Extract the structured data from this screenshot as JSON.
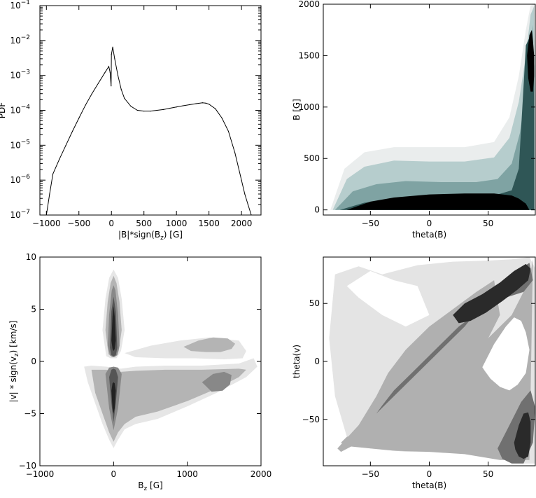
{
  "chart_data": [
    {
      "type": "line",
      "title": "",
      "xlabel": "|B|*sign(B",
      "xlabel_sub": "z",
      "xlabel_tail": ") [G]",
      "ylabel": "PDF",
      "xlim": [
        -1100,
        2300
      ],
      "ylim": [
        1e-07,
        0.1
      ],
      "y_scale": "log",
      "x_ticks": [
        -1000,
        -500,
        0,
        500,
        1000,
        1500,
        2000
      ],
      "x_tick_labels": [
        "−1000",
        "−500",
        "0",
        "500",
        "1000",
        "1500",
        "2000"
      ],
      "y_tick_exponents": [
        -7,
        -6,
        -5,
        -4,
        -3,
        -2,
        -1
      ],
      "y_tick_base": "10",
      "series": [
        {
          "x": [
            -1000,
            -950,
            -900,
            -800,
            -700,
            -600,
            -500,
            -400,
            -300,
            -200,
            -100,
            -40,
            -20,
            -5,
            0,
            20,
            50,
            100,
            150,
            200,
            300,
            400,
            500,
            600,
            700,
            800,
            900,
            1000,
            1100,
            1200,
            1300,
            1400,
            1450,
            1500,
            1600,
            1700,
            1800,
            1900,
            2000,
            2050,
            2100,
            2150
          ],
          "y": [
            1e-07,
            4e-07,
            1.5e-06,
            4e-06,
            1e-05,
            2.5e-05,
            6e-05,
            0.00014,
            0.0003,
            0.0006,
            0.0012,
            0.0018,
            0.0012,
            0.0005,
            0.004,
            0.0065,
            0.003,
            0.001,
            0.0004,
            0.00022,
            0.00013,
            0.0001,
            9.5e-05,
            9.5e-05,
            0.0001,
            0.000105,
            0.000115,
            0.000125,
            0.000135,
            0.000145,
            0.000155,
            0.000165,
            0.00016,
            0.00015,
            0.00011,
            6e-05,
            2.5e-05,
            6e-06,
            1e-06,
            4e-07,
            2e-07,
            1e-07
          ]
        }
      ]
    },
    {
      "type": "heatmap",
      "title": "",
      "xlabel": "theta(B)",
      "ylabel": "B [G]",
      "xlim": [
        -90,
        90
      ],
      "ylim": [
        -50,
        2000
      ],
      "x_ticks": [
        -50,
        0,
        50
      ],
      "x_tick_labels": [
        "−50",
        "0",
        "50"
      ],
      "y_ticks": [
        0,
        500,
        1000,
        1500,
        2000
      ],
      "y_tick_labels": [
        "0",
        "500",
        "1000",
        "1500",
        "2000"
      ],
      "levels": [
        {
          "color": "#eaeded",
          "x": [
            -84,
            -72,
            -55,
            -30,
            0,
            30,
            55,
            68,
            76,
            82,
            86,
            89,
            90,
            90,
            -84
          ],
          "y": [
            0,
            400,
            560,
            610,
            610,
            610,
            660,
            900,
            1300,
            1750,
            1990,
            2000,
            2000,
            0,
            0
          ]
        },
        {
          "color": "#b6cdcd",
          "x": [
            -82,
            -70,
            -55,
            -30,
            0,
            30,
            55,
            68,
            76,
            82,
            86,
            89,
            90,
            -82
          ],
          "y": [
            0,
            300,
            420,
            480,
            470,
            470,
            510,
            700,
            1050,
            1500,
            1900,
            1980,
            0,
            0
          ]
        },
        {
          "color": "#7fa3a3",
          "x": [
            -80,
            -65,
            -45,
            -20,
            10,
            40,
            58,
            70,
            77,
            82,
            86,
            88,
            89,
            -80
          ],
          "y": [
            0,
            180,
            250,
            280,
            270,
            270,
            300,
            450,
            750,
            1150,
            1600,
            1800,
            0,
            0
          ]
        },
        {
          "color": "#2f5656",
          "x": [
            -76,
            -55,
            -30,
            0,
            30,
            55,
            70,
            76,
            78,
            80,
            82,
            86,
            89,
            89,
            -76
          ],
          "y": [
            0,
            70,
            100,
            110,
            120,
            140,
            190,
            400,
            800,
            1200,
            1600,
            1700,
            1400,
            0,
            0
          ]
        },
        {
          "color": "#000000",
          "x": [
            -70,
            -50,
            -30,
            0,
            30,
            55,
            70,
            76,
            82,
            85,
            -70
          ],
          "y": [
            0,
            80,
            120,
            150,
            160,
            160,
            140,
            110,
            60,
            0,
            0
          ]
        },
        {
          "color": "#000000",
          "x": [
            83,
            85,
            87,
            88,
            89,
            89,
            88,
            86,
            84,
            83
          ],
          "y": [
            1500,
            1700,
            1750,
            1650,
            1500,
            1300,
            1150,
            1150,
            1280,
            1500
          ]
        }
      ]
    },
    {
      "type": "heatmap",
      "title": "",
      "xlabel": "B",
      "xlabel_sub": "z",
      "xlabel_tail": " [G]",
      "ylabel": "|v| * sign(v",
      "ylabel_sub": "z",
      "ylabel_tail": ") [km/s]",
      "xlim": [
        -1000,
        2000
      ],
      "ylim": [
        -10,
        10
      ],
      "x_ticks": [
        -1000,
        0,
        1000,
        2000
      ],
      "x_tick_labels": [
        "−1000",
        "0",
        "1000",
        "2000"
      ],
      "y_ticks": [
        -10,
        -5,
        0,
        5,
        10
      ],
      "y_tick_labels": [
        "−10",
        "−5",
        "0",
        "5",
        "10"
      ],
      "levels": [
        {
          "color": "#e6e6e6",
          "x": [
            -400,
            -350,
            -250,
            -150,
            -60,
            0,
            60,
            150,
            300,
            600,
            1000,
            1400,
            1800,
            1950,
            1900,
            1700,
            1200,
            700,
            300,
            100,
            0,
            -100,
            -300,
            -400
          ],
          "y": [
            -0.5,
            -2,
            -4,
            -6,
            -7.5,
            -8.3,
            -7.5,
            -6.5,
            -6,
            -5.5,
            -4.3,
            -3,
            -1.5,
            -0.5,
            0.3,
            -0.2,
            -0.4,
            -0.4,
            -0.5,
            -0.7,
            -0.6,
            -0.5,
            -0.4,
            -0.5
          ]
        },
        {
          "color": "#e6e6e6",
          "x": [
            -100,
            -150,
            -110,
            -60,
            0,
            60,
            110,
            150,
            100,
            40,
            -40,
            -100
          ],
          "y": [
            0.5,
            3,
            6,
            8,
            8.8,
            8,
            6,
            3,
            1,
            0.3,
            0.3,
            0.5
          ]
        },
        {
          "color": "#e6e6e6",
          "x": [
            150,
            500,
            900,
            1300,
            1700,
            1800,
            1750,
            1500,
            1100,
            700,
            300,
            150
          ],
          "y": [
            0.8,
            1.5,
            2.0,
            2.3,
            2.0,
            1.0,
            0.3,
            0.2,
            0.3,
            0.3,
            0.4,
            0.8
          ]
        },
        {
          "color": "#b4b4b4",
          "x": [
            -300,
            -250,
            -150,
            -60,
            0,
            60,
            150,
            300,
            600,
            1000,
            1400,
            1700,
            1800,
            1700,
            1200,
            700,
            300,
            100,
            0,
            -100,
            -300
          ],
          "y": [
            -0.8,
            -3,
            -5,
            -6.8,
            -7.7,
            -6.8,
            -6,
            -5.3,
            -4.8,
            -3.8,
            -2.6,
            -1.5,
            -0.8,
            -0.7,
            -0.8,
            -0.8,
            -0.9,
            -1.0,
            -0.9,
            -0.8,
            -0.8
          ]
        },
        {
          "color": "#b4b4b4",
          "x": [
            -70,
            -110,
            -80,
            -40,
            0,
            40,
            80,
            110,
            70,
            20,
            -20,
            -70
          ],
          "y": [
            0.7,
            3,
            5.7,
            7.5,
            8.2,
            7.5,
            5.7,
            3,
            1,
            0.4,
            0.4,
            0.7
          ]
        },
        {
          "color": "#b4b4b4",
          "x": [
            950,
            1150,
            1350,
            1550,
            1650,
            1600,
            1450,
            1250,
            1050,
            950
          ],
          "y": [
            1.4,
            2.0,
            2.3,
            2.2,
            1.7,
            1.2,
            0.9,
            0.9,
            1.0,
            1.4
          ]
        },
        {
          "color": "#888888",
          "x": [
            1200,
            1350,
            1500,
            1600,
            1580,
            1480,
            1330,
            1200
          ],
          "y": [
            -2.0,
            -1.2,
            -1.0,
            -1.3,
            -2.2,
            -2.8,
            -2.9,
            -2.0
          ]
        },
        {
          "color": "#888888",
          "x": [
            -110,
            -60,
            0,
            60,
            110,
            60,
            0,
            -60,
            -110
          ],
          "y": [
            -1.2,
            -4.5,
            -6.6,
            -4.5,
            -1.2,
            -0.6,
            -0.5,
            -0.6,
            -1.2
          ]
        },
        {
          "color": "#888888",
          "x": [
            -80,
            -60,
            -25,
            0,
            25,
            60,
            80,
            50,
            0,
            -50,
            -80
          ],
          "y": [
            1.5,
            4.5,
            6.8,
            7.3,
            6.8,
            4.5,
            1.5,
            0.6,
            0.4,
            0.6,
            1.5
          ]
        },
        {
          "color": "#555555",
          "x": [
            -60,
            -30,
            0,
            30,
            60,
            30,
            0,
            -30,
            -60
          ],
          "y": [
            -1.5,
            -4,
            -5.8,
            -4,
            -1.5,
            -0.8,
            -0.7,
            -0.8,
            -1.5
          ]
        },
        {
          "color": "#555555",
          "x": [
            -50,
            -30,
            0,
            30,
            50,
            30,
            0,
            -30,
            -50
          ],
          "y": [
            1.3,
            4.8,
            6.2,
            4.8,
            1.3,
            0.6,
            0.5,
            0.6,
            1.3
          ]
        },
        {
          "color": "#222222",
          "x": [
            -30,
            -15,
            0,
            15,
            30,
            15,
            0,
            -15,
            -30
          ],
          "y": [
            -2.8,
            -4.5,
            -5.0,
            -4.5,
            -2.8,
            -2.1,
            -2.0,
            -2.1,
            -2.8
          ]
        },
        {
          "color": "#222222",
          "x": [
            -30,
            -15,
            0,
            15,
            30,
            15,
            0,
            -15,
            -30
          ],
          "y": [
            2.0,
            4.3,
            5.3,
            4.3,
            2.0,
            1.2,
            1.0,
            1.2,
            2.0
          ]
        }
      ]
    },
    {
      "type": "heatmap",
      "title": "",
      "xlabel": "theta(B)",
      "ylabel": "theta(v)",
      "xlim": [
        -90,
        90
      ],
      "ylim": [
        -90,
        90
      ],
      "x_ticks": [
        -50,
        0,
        50
      ],
      "x_tick_labels": [
        "−50",
        "0",
        "50"
      ],
      "y_ticks": [
        -50,
        0,
        50
      ],
      "y_tick_labels": [
        "−50",
        "0",
        "50"
      ],
      "levels": [
        {
          "color": "#e4e4e4",
          "x": [
            -80,
            -60,
            -40,
            -10,
            20,
            50,
            70,
            85,
            90,
            90,
            80,
            60,
            40,
            10,
            -20,
            -50,
            -70,
            -80,
            -85,
            -80
          ],
          "y": [
            75,
            82,
            75,
            83,
            86,
            87,
            88,
            90,
            80,
            -88,
            -88,
            -84,
            -80,
            -78,
            -78,
            -75,
            -65,
            -30,
            20,
            75
          ]
        },
        {
          "color": "#ffffff",
          "x": [
            -70,
            -50,
            -30,
            -10,
            0,
            -20,
            -40,
            -60,
            -70
          ],
          "y": [
            65,
            78,
            70,
            65,
            40,
            30,
            40,
            55,
            65
          ]
        },
        {
          "color": "#b0b0b0",
          "x": [
            -70,
            -50,
            -20,
            10,
            40,
            70,
            85,
            88,
            85,
            60,
            30,
            0,
            -30,
            -50,
            -70,
            -75,
            -70
          ],
          "y": [
            -65,
            -60,
            -45,
            -20,
            10,
            40,
            70,
            88,
            -85,
            -85,
            -80,
            -78,
            -77,
            -75,
            -73,
            -70,
            -65
          ]
        },
        {
          "color": "#b0b0b0",
          "x": [
            -78,
            -60,
            -45,
            -35,
            -20,
            0,
            20,
            40,
            55,
            60,
            50,
            30,
            10,
            -15,
            -40,
            -60,
            -75,
            -78
          ],
          "y": [
            -75,
            -55,
            -30,
            -10,
            10,
            30,
            45,
            60,
            70,
            40,
            20,
            -10,
            -30,
            -50,
            -65,
            -70,
            -78,
            -75
          ]
        },
        {
          "color": "#ffffff",
          "x": [
            45,
            55,
            65,
            72,
            78,
            82,
            85,
            82,
            75,
            68,
            60,
            52,
            47,
            45
          ],
          "y": [
            -5,
            15,
            30,
            38,
            35,
            25,
            10,
            -10,
            -20,
            -25,
            -22,
            -15,
            -8,
            -5
          ]
        },
        {
          "color": "#707070",
          "x": [
            -45,
            -35,
            -15,
            10,
            30,
            50,
            70,
            85,
            88,
            80,
            65,
            45,
            25,
            5,
            -15,
            -30,
            -40,
            -45
          ],
          "y": [
            -45,
            -35,
            -15,
            10,
            30,
            55,
            75,
            85,
            70,
            60,
            55,
            45,
            30,
            10,
            -10,
            -25,
            -38,
            -45
          ]
        },
        {
          "color": "#707070",
          "x": [
            58,
            68,
            78,
            86,
            90,
            88,
            80,
            70,
            62,
            58
          ],
          "y": [
            -75,
            -55,
            -35,
            -25,
            -40,
            -70,
            -88,
            -88,
            -84,
            -75
          ]
        },
        {
          "color": "#2a2a2a",
          "x": [
            20,
            30,
            45,
            60,
            72,
            82,
            86,
            84,
            75,
            62,
            48,
            35,
            25,
            20
          ],
          "y": [
            40,
            50,
            58,
            68,
            78,
            84,
            80,
            70,
            62,
            52,
            42,
            35,
            33,
            40
          ]
        },
        {
          "color": "#2a2a2a",
          "x": [
            72,
            76,
            80,
            84,
            86,
            86,
            84,
            80,
            76,
            73,
            72
          ],
          "y": [
            -70,
            -55,
            -45,
            -44,
            -52,
            -70,
            -82,
            -84,
            -82,
            -76,
            -70
          ]
        }
      ]
    }
  ]
}
